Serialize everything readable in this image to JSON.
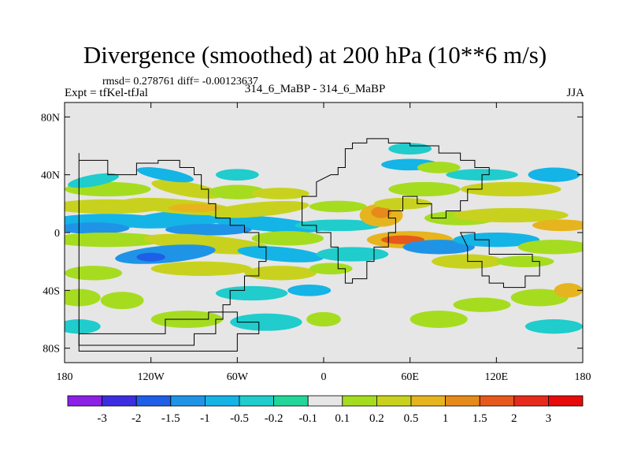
{
  "header": {
    "title": "Divergence (smoothed) at 200 hPa (10**6 m/s)",
    "stats": "rmsd= 0.278761 diff= -0.00123637",
    "expt": "Expt = tfKel-tfJal",
    "comparison": "314_6_MaBP - 314_6_MaBP",
    "season": "JJA"
  },
  "chart_data": {
    "type": "heatmap",
    "title": "Divergence (smoothed) at 200 hPa (10**6 m/s)",
    "subtitle": "314_6_MaBP - 314_6_MaBP",
    "x_axis": {
      "range": [
        -180,
        180
      ],
      "tick_values": [
        -180,
        -120,
        -60,
        0,
        60,
        120,
        180
      ],
      "tick_labels": [
        "180",
        "120W",
        "60W",
        "0",
        "60E",
        "120E",
        "180"
      ]
    },
    "y_axis": {
      "range": [
        -90,
        90
      ],
      "tick_values": [
        80,
        40,
        0,
        -40,
        -80
      ],
      "tick_labels": [
        "80N",
        "40N",
        "0",
        "40S",
        "80S"
      ]
    },
    "background_color": "#e6e6e6",
    "colorbar": {
      "labels": [
        "-3",
        "-2",
        "-1.5",
        "-1",
        "-0.5",
        "-0.2",
        "-0.1",
        "0.1",
        "0.2",
        "0.5",
        "1",
        "1.5",
        "2",
        "3"
      ],
      "colors": [
        "#8c20e6",
        "#3c2ee0",
        "#1f5ee6",
        "#1f94e6",
        "#14b4e6",
        "#20cccc",
        "#22d699",
        "#e6e6e6",
        "#a6dc20",
        "#c8d21e",
        "#e6b41e",
        "#e68a1c",
        "#e6581c",
        "#e62a1c",
        "#e60a0a"
      ]
    }
  }
}
